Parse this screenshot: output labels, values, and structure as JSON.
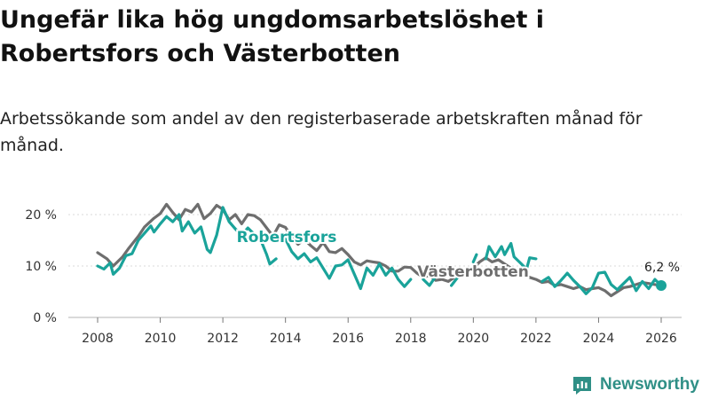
{
  "title": "Ungefär lika hög ungdomsarbetslöshet i Robertsfors och Västerbotten",
  "subtitle": "Arbetssökande som andel av den registerbaserade arbetskraften månad för månad.",
  "brand": "Newsworthy",
  "chart_data": {
    "type": "line",
    "title": "Ungefär lika hög ungdomsarbetslöshet i Robertsfors och Västerbotten",
    "subtitle": "Arbetssökande som andel av den registerbaserade arbetskraften månad för månad.",
    "xlabel": "",
    "ylabel": "",
    "xlim": [
      2007.5,
      2026.75
    ],
    "ylim": [
      0,
      22
    ],
    "x_ticks": [
      2008,
      2010,
      2012,
      2014,
      2016,
      2018,
      2020,
      2022,
      2024,
      2026
    ],
    "x_tick_labels": [
      "2008",
      "2010",
      "2012",
      "2014",
      "2016",
      "2018",
      "2020",
      "2022",
      "2024",
      "2026"
    ],
    "y_ticks": [
      0,
      10,
      20
    ],
    "y_tick_labels": [
      "0 %",
      "10 %",
      "20 %"
    ],
    "grid": true,
    "end_label": "6,2 %",
    "series": [
      {
        "name": "Västerbotten",
        "color": "#6e6e6e",
        "points": [
          [
            2008.0,
            12.6
          ],
          [
            2008.3,
            11.4
          ],
          [
            2008.5,
            10.0
          ],
          [
            2008.8,
            11.8
          ],
          [
            2009.0,
            13.5
          ],
          [
            2009.3,
            15.8
          ],
          [
            2009.5,
            17.6
          ],
          [
            2009.8,
            19.3
          ],
          [
            2010.0,
            20.2
          ],
          [
            2010.2,
            22.0
          ],
          [
            2010.4,
            20.4
          ],
          [
            2010.6,
            19.0
          ],
          [
            2010.8,
            21.0
          ],
          [
            2011.0,
            20.5
          ],
          [
            2011.2,
            22.0
          ],
          [
            2011.4,
            19.2
          ],
          [
            2011.6,
            20.2
          ],
          [
            2011.8,
            21.8
          ],
          [
            2012.0,
            21.0
          ],
          [
            2012.2,
            19.0
          ],
          [
            2012.4,
            20.0
          ],
          [
            2012.6,
            18.2
          ],
          [
            2012.8,
            20.0
          ],
          [
            2013.0,
            19.8
          ],
          [
            2013.2,
            19.0
          ],
          [
            2013.4,
            17.4
          ],
          [
            2013.6,
            15.8
          ],
          [
            2013.8,
            18.0
          ],
          [
            2014.0,
            17.5
          ],
          [
            2014.2,
            15.6
          ],
          [
            2014.4,
            14.2
          ],
          [
            2014.6,
            15.2
          ],
          [
            2014.8,
            14.0
          ],
          [
            2015.0,
            13.0
          ],
          [
            2015.2,
            14.6
          ],
          [
            2015.4,
            12.8
          ],
          [
            2015.6,
            12.6
          ],
          [
            2015.8,
            13.4
          ],
          [
            2016.0,
            12.2
          ],
          [
            2016.2,
            10.8
          ],
          [
            2016.4,
            10.2
          ],
          [
            2016.6,
            11.0
          ],
          [
            2016.8,
            10.8
          ],
          [
            2017.0,
            10.6
          ],
          [
            2017.2,
            10.0
          ],
          [
            2017.4,
            9.0
          ],
          [
            2017.6,
            9.0
          ],
          [
            2017.8,
            9.8
          ],
          [
            2018.0,
            9.7
          ],
          [
            2018.2,
            8.6
          ],
          [
            2018.4,
            7.8
          ],
          [
            2018.6,
            8.2
          ],
          [
            2018.8,
            7.2
          ],
          [
            2019.0,
            7.4
          ],
          [
            2019.2,
            7.0
          ],
          [
            2019.4,
            7.8
          ],
          [
            2019.6,
            8.6
          ],
          [
            2019.8,
            9.0
          ],
          [
            2020.0,
            9.5
          ],
          [
            2020.2,
            10.8
          ],
          [
            2020.4,
            11.6
          ],
          [
            2020.6,
            10.8
          ],
          [
            2020.8,
            11.2
          ],
          [
            2021.0,
            10.4
          ],
          [
            2021.2,
            9.6
          ],
          [
            2021.4,
            8.8
          ],
          [
            2021.6,
            8.4
          ],
          [
            2021.8,
            7.8
          ],
          [
            2022.0,
            7.4
          ],
          [
            2022.2,
            6.8
          ],
          [
            2022.4,
            7.0
          ],
          [
            2022.6,
            6.2
          ],
          [
            2022.8,
            6.4
          ],
          [
            2023.0,
            6.0
          ],
          [
            2023.2,
            5.6
          ],
          [
            2023.4,
            6.0
          ],
          [
            2023.6,
            5.4
          ],
          [
            2023.8,
            5.6
          ],
          [
            2024.0,
            5.8
          ],
          [
            2024.2,
            5.2
          ],
          [
            2024.4,
            4.2
          ],
          [
            2024.6,
            5.0
          ],
          [
            2024.8,
            5.8
          ],
          [
            2025.0,
            6.0
          ],
          [
            2025.2,
            6.4
          ],
          [
            2025.4,
            6.8
          ],
          [
            2025.6,
            6.6
          ],
          [
            2025.8,
            6.4
          ],
          [
            2026.0,
            6.2
          ]
        ]
      },
      {
        "name": "Robertsfors",
        "color": "#1aa39a",
        "segments": [
          [
            [
              2008.0,
              10.0
            ],
            [
              2008.2,
              9.4
            ],
            [
              2008.4,
              10.6
            ],
            [
              2008.5,
              8.4
            ],
            [
              2008.7,
              9.6
            ],
            [
              2008.9,
              12.0
            ],
            [
              2009.1,
              12.4
            ],
            [
              2009.3,
              15.0
            ],
            [
              2009.5,
              16.4
            ],
            [
              2009.7,
              17.8
            ],
            [
              2009.8,
              16.6
            ],
            [
              2010.0,
              18.2
            ],
            [
              2010.2,
              19.6
            ],
            [
              2010.4,
              18.6
            ],
            [
              2010.6,
              20.0
            ],
            [
              2010.7,
              16.8
            ],
            [
              2010.9,
              18.6
            ],
            [
              2011.1,
              16.4
            ],
            [
              2011.3,
              17.6
            ],
            [
              2011.5,
              13.2
            ],
            [
              2011.6,
              12.6
            ],
            [
              2011.8,
              16.0
            ],
            [
              2012.0,
              21.4
            ],
            [
              2012.2,
              18.6
            ],
            [
              2012.4,
              17.2
            ],
            [
              2012.6,
              16.0
            ],
            [
              2012.8,
              17.4
            ],
            [
              2013.0,
              16.2
            ],
            [
              2013.2,
              15.2
            ],
            [
              2013.4,
              12.2
            ],
            [
              2013.5,
              10.4
            ],
            [
              2013.7,
              11.4
            ]
          ],
          [
            [
              2014.0,
              15.2
            ],
            [
              2014.2,
              12.8
            ],
            [
              2014.4,
              11.4
            ],
            [
              2014.6,
              12.4
            ],
            [
              2014.8,
              10.8
            ],
            [
              2015.0,
              11.6
            ],
            [
              2015.2,
              9.6
            ],
            [
              2015.4,
              7.6
            ],
            [
              2015.6,
              10.0
            ],
            [
              2015.8,
              10.2
            ],
            [
              2016.0,
              11.2
            ],
            [
              2016.2,
              8.4
            ],
            [
              2016.4,
              5.6
            ],
            [
              2016.6,
              9.6
            ],
            [
              2016.8,
              8.2
            ],
            [
              2017.0,
              10.4
            ],
            [
              2017.2,
              8.2
            ],
            [
              2017.4,
              9.6
            ],
            [
              2017.6,
              7.4
            ],
            [
              2017.8,
              6.0
            ],
            [
              2018.0,
              7.4
            ]
          ],
          [
            [
              2018.4,
              7.4
            ],
            [
              2018.6,
              6.2
            ],
            [
              2018.8,
              8.0
            ]
          ],
          [
            [
              2019.3,
              6.2
            ],
            [
              2019.5,
              7.8
            ]
          ],
          [
            [
              2020.0,
              10.8
            ],
            [
              2020.1,
              12.2
            ]
          ],
          [
            [
              2020.4,
              11.4
            ],
            [
              2020.5,
              13.8
            ],
            [
              2020.7,
              11.8
            ],
            [
              2020.9,
              13.8
            ],
            [
              2021.0,
              12.2
            ],
            [
              2021.2,
              14.4
            ],
            [
              2021.3,
              11.8
            ],
            [
              2021.5,
              10.6
            ],
            [
              2021.7,
              9.4
            ],
            [
              2021.8,
              11.6
            ],
            [
              2022.0,
              11.4
            ]
          ],
          [
            [
              2022.2,
              7.0
            ],
            [
              2022.4,
              7.8
            ],
            [
              2022.6,
              6.0
            ],
            [
              2022.8,
              7.2
            ],
            [
              2023.0,
              8.6
            ],
            [
              2023.2,
              7.2
            ],
            [
              2023.4,
              6.0
            ],
            [
              2023.6,
              4.6
            ],
            [
              2023.8,
              5.8
            ],
            [
              2024.0,
              8.6
            ],
            [
              2024.2,
              8.8
            ],
            [
              2024.4,
              6.4
            ],
            [
              2024.6,
              5.4
            ],
            [
              2024.8,
              6.6
            ],
            [
              2025.0,
              7.8
            ],
            [
              2025.2,
              5.2
            ],
            [
              2025.4,
              7.0
            ],
            [
              2025.6,
              5.6
            ],
            [
              2025.8,
              7.4
            ],
            [
              2026.0,
              6.2
            ]
          ]
        ]
      }
    ]
  }
}
